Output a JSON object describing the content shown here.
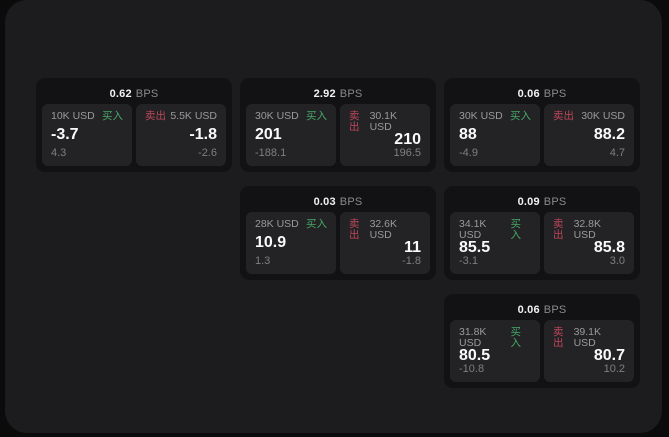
{
  "labels": {
    "bps_unit": "BPS",
    "buy": "买入",
    "sell": "卖出"
  },
  "colors": {
    "buy_green": "#46a866",
    "sell_red": "#be465a",
    "panel_bg": "#1c1c1e",
    "card_bg": "#121214",
    "subpanel_bg": "#232326"
  },
  "cards": [
    {
      "bps": "0.62",
      "grid": {
        "row": 1,
        "col": 1
      },
      "buy": {
        "amount": "10K USD",
        "value": "-3.7",
        "delta": "4.3"
      },
      "sell": {
        "amount": "5.5K USD",
        "value": "-1.8",
        "delta": "-2.6"
      }
    },
    {
      "bps": "2.92",
      "grid": {
        "row": 1,
        "col": 2
      },
      "buy": {
        "amount": "30K USD",
        "value": "201",
        "delta": "-188.1"
      },
      "sell": {
        "amount": "30.1K USD",
        "value": "210",
        "delta": "196.5"
      }
    },
    {
      "bps": "0.06",
      "grid": {
        "row": 1,
        "col": 3
      },
      "buy": {
        "amount": "30K USD",
        "value": "88",
        "delta": "-4.9"
      },
      "sell": {
        "amount": "30K USD",
        "value": "88.2",
        "delta": "4.7"
      }
    },
    {
      "bps": "0.03",
      "grid": {
        "row": 2,
        "col": 2
      },
      "buy": {
        "amount": "28K USD",
        "value": "10.9",
        "delta": "1.3"
      },
      "sell": {
        "amount": "32.6K USD",
        "value": "11",
        "delta": "-1.8"
      }
    },
    {
      "bps": "0.09",
      "grid": {
        "row": 2,
        "col": 3
      },
      "buy": {
        "amount": "34.1K USD",
        "value": "85.5",
        "delta": "-3.1"
      },
      "sell": {
        "amount": "32.8K USD",
        "value": "85.8",
        "delta": "3.0"
      }
    },
    {
      "bps": "0.06",
      "grid": {
        "row": 3,
        "col": 3
      },
      "buy": {
        "amount": "31.8K USD",
        "value": "80.5",
        "delta": "-10.8"
      },
      "sell": {
        "amount": "39.1K USD",
        "value": "80.7",
        "delta": "10.2"
      }
    }
  ]
}
